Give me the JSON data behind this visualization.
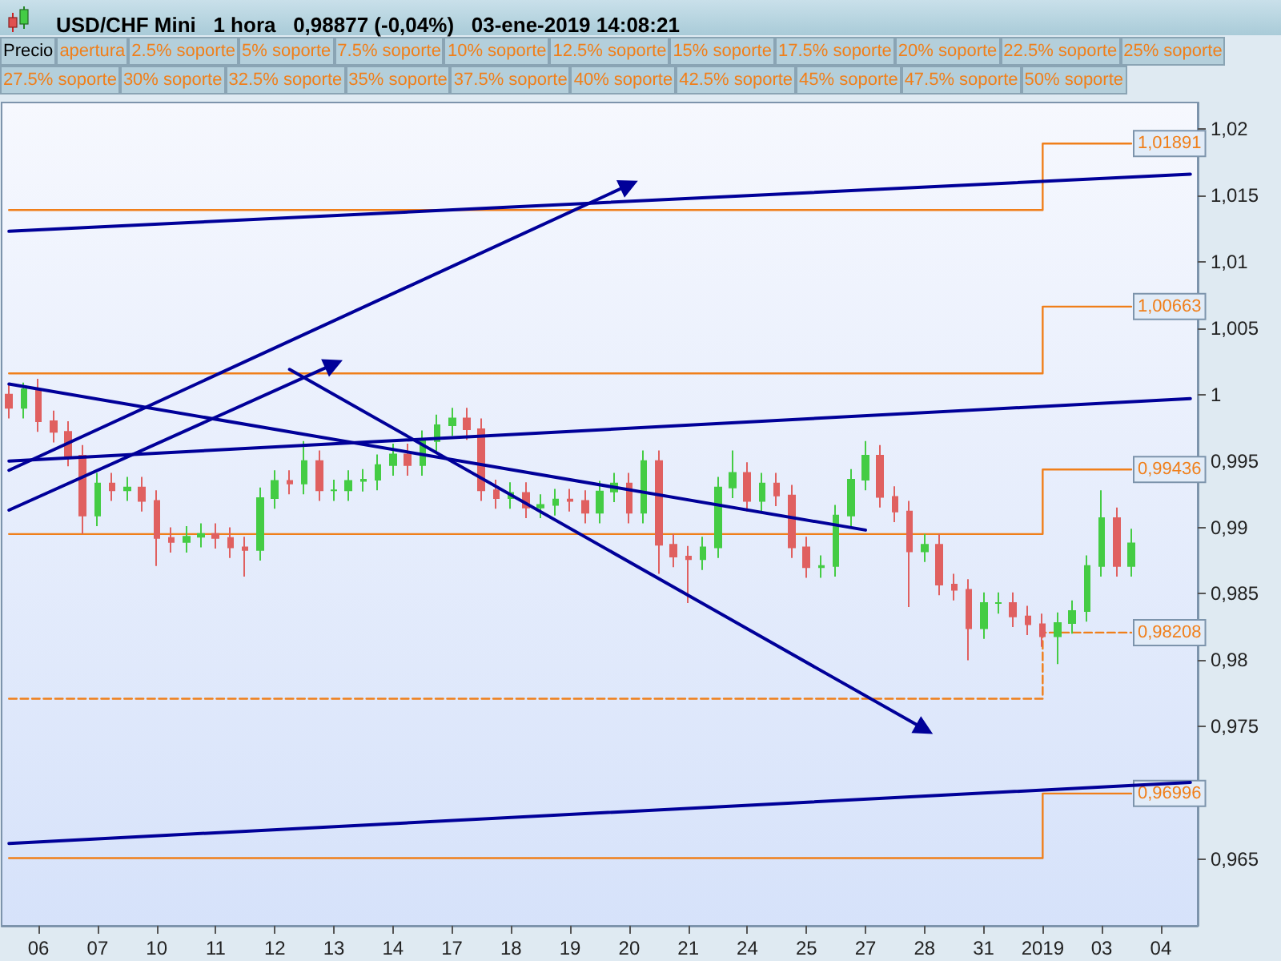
{
  "chart_data": {
    "type": "candlestick",
    "title": "USD/CHF Mini   1 hora   0,98877 (-0,04%)   03-ene-2019 14:08:21",
    "annotations": [
      "Precio",
      "apertura",
      "2.5% soporte",
      "5% soporte",
      "7.5% soporte",
      "10% soporte",
      "12.5% soporte",
      "15% soporte",
      "17.5% soporte",
      "20% soporte",
      "22.5% soporte",
      "25% soporte",
      "27.5% soporte",
      "30% soporte",
      "32.5% soporte",
      "35% soporte",
      "37.5% soporte",
      "40% soporte",
      "42.5% soporte",
      "45% soporte",
      "47.5% soporte",
      "50% soporte"
    ],
    "categories": [
      null,
      null,
      "06",
      null,
      null,
      null,
      "07",
      null,
      null,
      null,
      "10",
      null,
      null,
      null,
      "11",
      null,
      null,
      null,
      "12",
      null,
      null,
      null,
      "13",
      null,
      null,
      null,
      "14",
      null,
      null,
      null,
      "17",
      null,
      null,
      null,
      "18",
      null,
      null,
      null,
      "19",
      null,
      null,
      null,
      "20",
      null,
      null,
      null,
      "21",
      null,
      null,
      null,
      "24",
      null,
      null,
      null,
      "25",
      null,
      null,
      null,
      "27",
      null,
      null,
      null,
      "28",
      null,
      null,
      null,
      "31",
      null,
      null,
      null,
      "2019",
      null,
      null,
      null,
      "03",
      null,
      null,
      null,
      "04",
      null,
      null
    ],
    "ohlc": [
      [
        1.0,
        1.0008,
        0.9982,
        0.999
      ],
      [
        0.999,
        1.0009,
        0.9982,
        1.0004
      ],
      [
        1.0004,
        1.0012,
        0.9972,
        0.998
      ],
      [
        0.998,
        0.9988,
        0.9964,
        0.9972
      ],
      [
        0.9972,
        0.998,
        0.9946,
        0.9954
      ],
      [
        0.9954,
        0.9962,
        0.9895,
        0.9909
      ],
      [
        0.9909,
        0.9941,
        0.9901,
        0.9933
      ],
      [
        0.9933,
        0.9941,
        0.992,
        0.9928
      ],
      [
        0.9928,
        0.9938,
        0.992,
        0.993
      ],
      [
        0.993,
        0.9938,
        0.9912,
        0.992
      ],
      [
        0.992,
        0.9928,
        0.9871,
        0.9892
      ],
      [
        0.9892,
        0.99,
        0.9881,
        0.9889
      ],
      [
        0.9889,
        0.9901,
        0.9881,
        0.9893
      ],
      [
        0.9893,
        0.9903,
        0.9885,
        0.9895
      ],
      [
        0.9895,
        0.9903,
        0.9884,
        0.9892
      ],
      [
        0.9892,
        0.99,
        0.9877,
        0.9885
      ],
      [
        0.9885,
        0.9893,
        0.9863,
        0.9883
      ],
      [
        0.9883,
        0.993,
        0.9875,
        0.9922
      ],
      [
        0.9922,
        0.9943,
        0.9914,
        0.9935
      ],
      [
        0.9935,
        0.9943,
        0.9925,
        0.9933
      ],
      [
        0.9933,
        0.9965,
        0.9925,
        0.995
      ],
      [
        0.995,
        0.9958,
        0.992,
        0.9928
      ],
      [
        0.9928,
        0.9936,
        0.992,
        0.9928
      ],
      [
        0.9928,
        0.9943,
        0.992,
        0.9935
      ],
      [
        0.9935,
        0.9944,
        0.9927,
        0.9936
      ],
      [
        0.9936,
        0.9955,
        0.9928,
        0.9947
      ],
      [
        0.9947,
        0.9963,
        0.9939,
        0.9955
      ],
      [
        0.9955,
        0.9963,
        0.9939,
        0.9947
      ],
      [
        0.9947,
        0.9973,
        0.9939,
        0.9965
      ],
      [
        0.9965,
        0.9985,
        0.9957,
        0.9977
      ],
      [
        0.9977,
        0.999,
        0.9969,
        0.9982
      ],
      [
        0.9982,
        0.999,
        0.9966,
        0.9974
      ],
      [
        0.9974,
        0.9982,
        0.992,
        0.9928
      ],
      [
        0.9928,
        0.9936,
        0.9914,
        0.9922
      ],
      [
        0.9922,
        0.9934,
        0.9914,
        0.9926
      ],
      [
        0.9926,
        0.9934,
        0.9907,
        0.9915
      ],
      [
        0.9915,
        0.9925,
        0.9907,
        0.9917
      ],
      [
        0.9917,
        0.9929,
        0.9909,
        0.9921
      ],
      [
        0.9921,
        0.9929,
        0.9912,
        0.992
      ],
      [
        0.992,
        0.9928,
        0.9903,
        0.9911
      ],
      [
        0.9911,
        0.9935,
        0.9903,
        0.9927
      ],
      [
        0.9927,
        0.9941,
        0.9919,
        0.9933
      ],
      [
        0.9933,
        0.9941,
        0.9903,
        0.9911
      ],
      [
        0.9911,
        0.9958,
        0.9903,
        0.995
      ],
      [
        0.995,
        0.9958,
        0.9865,
        0.9887
      ],
      [
        0.9887,
        0.9895,
        0.987,
        0.9878
      ],
      [
        0.9878,
        0.9886,
        0.9843,
        0.9876
      ],
      [
        0.9876,
        0.9893,
        0.9868,
        0.9885
      ],
      [
        0.9885,
        0.9938,
        0.9877,
        0.993
      ],
      [
        0.993,
        0.9958,
        0.9922,
        0.9941
      ],
      [
        0.9941,
        0.9949,
        0.9912,
        0.992
      ],
      [
        0.992,
        0.9941,
        0.9912,
        0.9933
      ],
      [
        0.9933,
        0.9941,
        0.9916,
        0.9924
      ],
      [
        0.9924,
        0.9932,
        0.9877,
        0.9885
      ],
      [
        0.9885,
        0.9893,
        0.9862,
        0.987
      ],
      [
        0.987,
        0.9879,
        0.9862,
        0.9871
      ],
      [
        0.9871,
        0.9917,
        0.9863,
        0.9909
      ],
      [
        0.9909,
        0.9944,
        0.9901,
        0.9936
      ],
      [
        0.9936,
        0.9965,
        0.9928,
        0.9954
      ],
      [
        0.9954,
        0.9962,
        0.9915,
        0.9923
      ],
      [
        0.9923,
        0.9931,
        0.9904,
        0.9912
      ],
      [
        0.9912,
        0.992,
        0.984,
        0.9882
      ],
      [
        0.9882,
        0.9895,
        0.9874,
        0.9887
      ],
      [
        0.9887,
        0.9895,
        0.9849,
        0.9857
      ],
      [
        0.9857,
        0.9865,
        0.9845,
        0.9853
      ],
      [
        0.9853,
        0.9861,
        0.98,
        0.9824
      ],
      [
        0.9824,
        0.9851,
        0.9816,
        0.9843
      ],
      [
        0.9843,
        0.9851,
        0.9835,
        0.9843
      ],
      [
        0.9843,
        0.9851,
        0.9825,
        0.9833
      ],
      [
        0.9833,
        0.9841,
        0.9819,
        0.9827
      ],
      [
        0.9827,
        0.9835,
        0.981,
        0.9818
      ],
      [
        0.9818,
        0.9836,
        0.9797,
        0.9828
      ],
      [
        0.9828,
        0.9845,
        0.982,
        0.9837
      ],
      [
        0.9837,
        0.9879,
        0.9829,
        0.9871
      ],
      [
        0.9871,
        0.9928,
        0.9863,
        0.9907
      ],
      [
        0.9907,
        0.9915,
        0.9863,
        0.9871
      ],
      [
        0.9871,
        0.9899,
        0.9863,
        0.9888
      ],
      null,
      null,
      null,
      null
    ],
    "series": [
      {
        "type": "step",
        "color": "#f07f1a",
        "values": [
          1.0139,
          null,
          null,
          null,
          null,
          null,
          null,
          null,
          null,
          null,
          null,
          null,
          null,
          null,
          null,
          null,
          null,
          null,
          null,
          null,
          null,
          null,
          null,
          null,
          null,
          null,
          null,
          null,
          null,
          null,
          null,
          null,
          null,
          null,
          null,
          null,
          null,
          null,
          null,
          null,
          null,
          null,
          null,
          null,
          null,
          null,
          null,
          null,
          null,
          null,
          null,
          null,
          null,
          null,
          null,
          null,
          null,
          null,
          null,
          null,
          null,
          null,
          null,
          null,
          null,
          null,
          null,
          null,
          null,
          null,
          1.01891,
          null,
          null,
          null,
          null,
          null,
          1.01891,
          null,
          null,
          null,
          null
        ],
        "value_labels": [
          null,
          null,
          null,
          null,
          null,
          null,
          null,
          null,
          null,
          null,
          null,
          null,
          null,
          null,
          null,
          null,
          null,
          null,
          null,
          null,
          null,
          null,
          null,
          null,
          null,
          null,
          null,
          null,
          null,
          null,
          null,
          null,
          null,
          null,
          null,
          null,
          null,
          null,
          null,
          null,
          null,
          null,
          null,
          null,
          null,
          null,
          null,
          null,
          null,
          null,
          null,
          null,
          null,
          null,
          null,
          null,
          null,
          null,
          null,
          null,
          null,
          null,
          null,
          null,
          null,
          null,
          null,
          null,
          null,
          null,
          null,
          null,
          null,
          null,
          null,
          null,
          "1,01891",
          null,
          null,
          null,
          null
        ]
      },
      {
        "type": "step",
        "color": "#f07f1a",
        "values": [
          1.0016,
          null,
          null,
          null,
          null,
          null,
          null,
          null,
          null,
          null,
          null,
          null,
          null,
          null,
          null,
          null,
          null,
          null,
          null,
          null,
          null,
          null,
          null,
          null,
          null,
          null,
          null,
          null,
          null,
          null,
          null,
          null,
          null,
          null,
          null,
          null,
          null,
          null,
          null,
          null,
          null,
          null,
          null,
          null,
          null,
          null,
          null,
          null,
          null,
          null,
          null,
          null,
          null,
          null,
          null,
          null,
          null,
          null,
          null,
          null,
          null,
          null,
          null,
          null,
          null,
          null,
          null,
          null,
          null,
          null,
          1.00663,
          null,
          null,
          null,
          null,
          null,
          1.00663,
          null,
          null,
          null,
          null
        ],
        "value_labels": [
          null,
          null,
          null,
          null,
          null,
          null,
          null,
          null,
          null,
          null,
          null,
          null,
          null,
          null,
          null,
          null,
          null,
          null,
          null,
          null,
          null,
          null,
          null,
          null,
          null,
          null,
          null,
          null,
          null,
          null,
          null,
          null,
          null,
          null,
          null,
          null,
          null,
          null,
          null,
          null,
          null,
          null,
          null,
          null,
          null,
          null,
          null,
          null,
          null,
          null,
          null,
          null,
          null,
          null,
          null,
          null,
          null,
          null,
          null,
          null,
          null,
          null,
          null,
          null,
          null,
          null,
          null,
          null,
          null,
          null,
          null,
          null,
          null,
          null,
          null,
          null,
          "1,00663",
          null,
          null,
          null,
          null
        ]
      },
      {
        "type": "step",
        "color": "#f07f1a",
        "values": [
          0.9895,
          null,
          null,
          null,
          null,
          null,
          null,
          null,
          null,
          null,
          null,
          null,
          null,
          null,
          null,
          null,
          null,
          null,
          null,
          null,
          null,
          null,
          null,
          null,
          null,
          null,
          null,
          null,
          null,
          null,
          null,
          null,
          null,
          null,
          null,
          null,
          null,
          null,
          null,
          null,
          null,
          null,
          null,
          null,
          null,
          null,
          null,
          null,
          null,
          null,
          null,
          null,
          null,
          null,
          null,
          null,
          null,
          null,
          null,
          null,
          null,
          null,
          null,
          null,
          null,
          null,
          null,
          null,
          null,
          null,
          0.99436,
          null,
          null,
          null,
          null,
          null,
          0.99436,
          null,
          null,
          null,
          null
        ],
        "value_labels": [
          null,
          null,
          null,
          null,
          null,
          null,
          null,
          null,
          null,
          null,
          null,
          null,
          null,
          null,
          null,
          null,
          null,
          null,
          null,
          null,
          null,
          null,
          null,
          null,
          null,
          null,
          null,
          null,
          null,
          null,
          null,
          null,
          null,
          null,
          null,
          null,
          null,
          null,
          null,
          null,
          null,
          null,
          null,
          null,
          null,
          null,
          null,
          null,
          null,
          null,
          null,
          null,
          null,
          null,
          null,
          null,
          null,
          null,
          null,
          null,
          null,
          null,
          null,
          null,
          null,
          null,
          null,
          null,
          null,
          null,
          null,
          null,
          null,
          null,
          null,
          null,
          "0,99436",
          null,
          null,
          null,
          null
        ]
      },
      {
        "type": "step",
        "color": "#f07f1a",
        "line_style": "dashed",
        "values": [
          0.9771,
          null,
          null,
          null,
          null,
          null,
          null,
          null,
          null,
          null,
          null,
          null,
          null,
          null,
          null,
          null,
          null,
          null,
          null,
          null,
          null,
          null,
          null,
          null,
          null,
          null,
          null,
          null,
          null,
          null,
          null,
          null,
          null,
          null,
          null,
          null,
          null,
          null,
          null,
          null,
          null,
          null,
          null,
          null,
          null,
          null,
          null,
          null,
          null,
          null,
          null,
          null,
          null,
          null,
          null,
          null,
          null,
          null,
          null,
          null,
          null,
          null,
          null,
          null,
          null,
          null,
          null,
          null,
          null,
          null,
          0.98208,
          null,
          null,
          null,
          null,
          null,
          0.98208,
          null,
          null,
          null,
          null
        ],
        "value_labels": [
          null,
          null,
          null,
          null,
          null,
          null,
          null,
          null,
          null,
          null,
          null,
          null,
          null,
          null,
          null,
          null,
          null,
          null,
          null,
          null,
          null,
          null,
          null,
          null,
          null,
          null,
          null,
          null,
          null,
          null,
          null,
          null,
          null,
          null,
          null,
          null,
          null,
          null,
          null,
          null,
          null,
          null,
          null,
          null,
          null,
          null,
          null,
          null,
          null,
          null,
          null,
          null,
          null,
          null,
          null,
          null,
          null,
          null,
          null,
          null,
          null,
          null,
          null,
          null,
          null,
          null,
          null,
          null,
          null,
          null,
          null,
          null,
          null,
          null,
          null,
          null,
          "0,98208",
          null,
          null,
          null,
          null
        ]
      },
      {
        "type": "step",
        "color": "#f07f1a",
        "values": [
          0.9651,
          null,
          null,
          null,
          null,
          null,
          null,
          null,
          null,
          null,
          null,
          null,
          null,
          null,
          null,
          null,
          null,
          null,
          null,
          null,
          null,
          null,
          null,
          null,
          null,
          null,
          null,
          null,
          null,
          null,
          null,
          null,
          null,
          null,
          null,
          null,
          null,
          null,
          null,
          null,
          null,
          null,
          null,
          null,
          null,
          null,
          null,
          null,
          null,
          null,
          null,
          null,
          null,
          null,
          null,
          null,
          null,
          null,
          null,
          null,
          null,
          null,
          null,
          null,
          null,
          null,
          null,
          null,
          null,
          null,
          0.96996,
          null,
          null,
          null,
          null,
          null,
          0.96996,
          null,
          null,
          null,
          null
        ],
        "value_labels": [
          null,
          null,
          null,
          null,
          null,
          null,
          null,
          null,
          null,
          null,
          null,
          null,
          null,
          null,
          null,
          null,
          null,
          null,
          null,
          null,
          null,
          null,
          null,
          null,
          null,
          null,
          null,
          null,
          null,
          null,
          null,
          null,
          null,
          null,
          null,
          null,
          null,
          null,
          null,
          null,
          null,
          null,
          null,
          null,
          null,
          null,
          null,
          null,
          null,
          null,
          null,
          null,
          null,
          null,
          null,
          null,
          null,
          null,
          null,
          null,
          null,
          null,
          null,
          null,
          null,
          null,
          null,
          null,
          null,
          null,
          null,
          null,
          null,
          null,
          null,
          null,
          "0,96996",
          null,
          null,
          null,
          null
        ]
      },
      {
        "type": "line",
        "color": "#000099",
        "values": [
          1.0123,
          null,
          null,
          null,
          null,
          null,
          null,
          null,
          null,
          null,
          null,
          null,
          null,
          null,
          null,
          null,
          null,
          null,
          null,
          null,
          null,
          null,
          null,
          null,
          null,
          null,
          null,
          null,
          null,
          null,
          null,
          null,
          null,
          null,
          null,
          null,
          null,
          null,
          null,
          null,
          null,
          null,
          null,
          null,
          null,
          null,
          null,
          null,
          null,
          null,
          null,
          null,
          null,
          null,
          null,
          null,
          null,
          null,
          null,
          null,
          null,
          null,
          null,
          null,
          null,
          null,
          null,
          null,
          null,
          null,
          null,
          null,
          null,
          null,
          null,
          null,
          null,
          null,
          null,
          null,
          1.0166
        ]
      },
      {
        "type": "line",
        "color": "#000099",
        "values": [
          0.995,
          null,
          null,
          null,
          null,
          null,
          null,
          null,
          null,
          null,
          null,
          null,
          null,
          null,
          null,
          null,
          null,
          null,
          null,
          null,
          null,
          null,
          null,
          null,
          null,
          null,
          null,
          null,
          null,
          null,
          null,
          null,
          null,
          null,
          null,
          null,
          null,
          null,
          null,
          null,
          null,
          null,
          null,
          null,
          null,
          null,
          null,
          null,
          null,
          null,
          null,
          null,
          null,
          null,
          null,
          null,
          null,
          null,
          null,
          null,
          null,
          null,
          null,
          null,
          null,
          null,
          null,
          null,
          null,
          null,
          null,
          null,
          null,
          null,
          null,
          null,
          null,
          null,
          null,
          null,
          0.9997
        ]
      },
      {
        "type": "line",
        "color": "#000099",
        "values": [
          0.9662,
          null,
          null,
          null,
          null,
          null,
          null,
          null,
          null,
          null,
          null,
          null,
          null,
          null,
          null,
          null,
          null,
          null,
          null,
          null,
          null,
          null,
          null,
          null,
          null,
          null,
          null,
          null,
          null,
          null,
          null,
          null,
          null,
          null,
          null,
          null,
          null,
          null,
          null,
          null,
          null,
          null,
          null,
          null,
          null,
          null,
          null,
          null,
          null,
          null,
          null,
          null,
          null,
          null,
          null,
          null,
          null,
          null,
          null,
          null,
          null,
          null,
          null,
          null,
          null,
          null,
          null,
          null,
          null,
          null,
          null,
          null,
          null,
          null,
          null,
          null,
          null,
          null,
          null,
          null,
          0.9708
        ]
      },
      {
        "type": "line",
        "color": "#000099",
        "values": [
          1.0008,
          null,
          null,
          null,
          null,
          null,
          null,
          null,
          null,
          null,
          null,
          null,
          null,
          null,
          null,
          null,
          null,
          null,
          null,
          null,
          null,
          null,
          null,
          null,
          null,
          null,
          null,
          null,
          null,
          null,
          null,
          null,
          null,
          null,
          null,
          null,
          null,
          null,
          null,
          null,
          null,
          null,
          null,
          null,
          null,
          null,
          null,
          null,
          null,
          null,
          null,
          null,
          null,
          null,
          null,
          null,
          null,
          null,
          0.9898,
          null,
          null,
          null,
          null,
          null,
          null,
          null,
          null,
          null,
          null,
          null,
          null,
          null,
          null,
          null,
          null,
          null,
          null,
          null,
          null,
          null,
          null
        ]
      },
      {
        "type": "line",
        "color": "#000099",
        "marker": "triangle",
        "values": [
          0.9943,
          null,
          null,
          null,
          null,
          null,
          null,
          null,
          null,
          null,
          null,
          null,
          null,
          null,
          null,
          null,
          null,
          null,
          null,
          null,
          null,
          null,
          null,
          null,
          null,
          null,
          null,
          null,
          null,
          null,
          null,
          null,
          null,
          null,
          null,
          null,
          null,
          null,
          null,
          null,
          null,
          null,
          1.0158,
          null,
          null,
          null,
          null,
          null,
          null,
          null,
          null,
          null,
          null,
          null,
          null,
          null,
          null,
          null,
          null,
          null,
          null,
          null,
          null,
          null,
          null,
          null,
          null,
          null,
          null,
          null,
          null,
          null,
          null,
          null,
          null,
          null,
          null,
          null,
          null,
          null,
          null
        ]
      },
      {
        "type": "line",
        "color": "#000099",
        "marker": "triangle",
        "values": [
          0.9913,
          null,
          null,
          null,
          null,
          null,
          null,
          null,
          null,
          null,
          null,
          null,
          null,
          null,
          null,
          null,
          null,
          null,
          null,
          null,
          null,
          null,
          1.0023,
          null,
          null,
          null,
          null,
          null,
          null,
          null,
          null,
          null,
          null,
          null,
          null,
          null,
          null,
          null,
          null,
          null,
          null,
          null,
          null,
          null,
          null,
          null,
          null,
          null,
          null,
          null,
          null,
          null,
          null,
          null,
          null,
          null,
          null,
          null,
          null,
          null,
          null,
          null,
          null,
          null,
          null,
          null,
          null,
          null,
          null,
          null,
          null,
          null,
          null,
          null,
          null,
          null,
          null,
          null,
          null,
          null,
          null
        ]
      },
      {
        "type": "line",
        "color": "#000099",
        "marker": "triangle",
        "values": [
          null,
          null,
          null,
          null,
          null,
          null,
          null,
          null,
          null,
          null,
          null,
          null,
          null,
          null,
          null,
          null,
          null,
          null,
          null,
          1.0019,
          null,
          null,
          null,
          null,
          null,
          null,
          null,
          null,
          null,
          null,
          null,
          null,
          null,
          null,
          null,
          null,
          null,
          null,
          null,
          null,
          null,
          null,
          null,
          null,
          null,
          null,
          null,
          null,
          null,
          null,
          null,
          null,
          null,
          null,
          null,
          null,
          null,
          null,
          null,
          null,
          null,
          null,
          0.9748,
          null,
          null,
          null,
          null,
          null,
          null,
          null,
          null,
          null,
          null,
          null,
          null,
          null,
          null,
          null,
          null,
          null,
          null
        ]
      }
    ],
    "ylim": [
      0.96,
      1.022
    ],
    "yticks": [
      {
        "value": 0.965,
        "label": "0,965"
      },
      {
        "value": 0.97,
        "label": null
      },
      {
        "value": 0.975,
        "label": "0,975"
      },
      {
        "value": 0.98,
        "label": "0,98"
      },
      {
        "value": 0.985,
        "label": "0,985"
      },
      {
        "value": 0.99,
        "label": "0,99"
      },
      {
        "value": 0.995,
        "label": "0,995"
      },
      {
        "value": 1,
        "label": "1"
      },
      {
        "value": 1.005,
        "label": "1,005"
      },
      {
        "value": 1.01,
        "label": "1,01"
      },
      {
        "value": 1.015,
        "label": "1,015"
      },
      {
        "value": 1.02,
        "label": "1,02"
      }
    ],
    "grid": false
  }
}
